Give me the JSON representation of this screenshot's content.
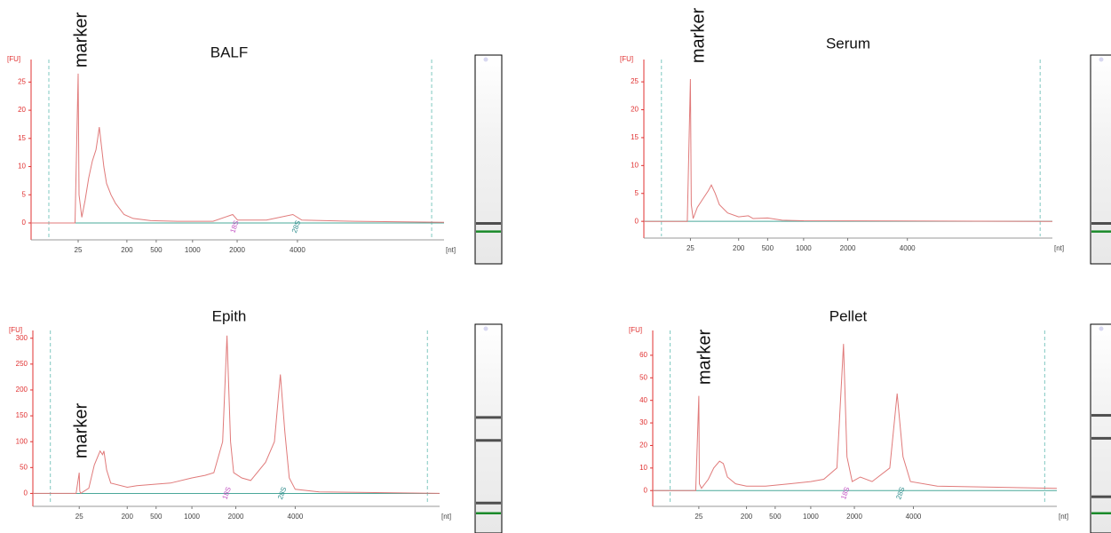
{
  "chart_data": [
    {
      "type": "line",
      "title": "BALF",
      "xlabel": "[nt]",
      "ylabel": "[FU]",
      "color": "#e07a7a",
      "x": [
        10,
        17,
        24,
        25,
        28,
        38,
        50,
        63,
        76,
        89,
        95,
        101,
        108,
        117,
        127,
        143,
        159,
        190,
        264,
        445,
        793,
        1460,
        1900,
        2015,
        2970,
        3850,
        4180,
        6360,
        10000
      ],
      "values": [
        0,
        0,
        0,
        26.5,
        5,
        1,
        4,
        8,
        11,
        13,
        15,
        17,
        14,
        10,
        7,
        5,
        3.5,
        1.5,
        0.8,
        0.4,
        0.3,
        0.3,
        1.5,
        0.5,
        0.5,
        1.5,
        0.5,
        0.3,
        0.1
      ],
      "xlim": [
        10,
        10000
      ],
      "xticks": [
        25,
        200,
        500,
        1000,
        2000,
        4000
      ],
      "ylim": [
        -3,
        29
      ],
      "yticks": [
        0,
        5,
        10,
        15,
        20,
        25
      ],
      "annotations": [
        {
          "text": "marker",
          "x": 25
        },
        {
          "text": "18S",
          "x": 1900
        },
        {
          "text": "28S",
          "x": 3900
        }
      ]
    },
    {
      "type": "line",
      "title": "Serum",
      "xlabel": "[nt]",
      "ylabel": "[FU]",
      "color": "#e07a7a",
      "x": [
        10,
        24,
        25,
        28,
        35,
        50,
        70,
        90,
        101,
        115,
        130,
        160,
        200,
        300,
        350,
        500,
        700,
        1000,
        10000
      ],
      "values": [
        0,
        0,
        25.5,
        3,
        0.5,
        2.5,
        4,
        5.5,
        6.5,
        5,
        3,
        1.5,
        0.8,
        1,
        0.5,
        0.6,
        0.2,
        0.1,
        0
      ],
      "xlim": [
        10,
        10000
      ],
      "xticks": [
        25,
        200,
        500,
        1000,
        2000,
        4000
      ],
      "ylim": [
        -3,
        29
      ],
      "yticks": [
        0,
        5,
        10,
        15,
        20,
        25
      ],
      "annotations": [
        {
          "text": "marker",
          "x": 25
        }
      ]
    },
    {
      "type": "line",
      "title": "Epith",
      "xlabel": "[nt]",
      "ylabel": "[FU]",
      "color": "#e07a7a",
      "x": [
        10,
        24,
        25,
        27,
        30,
        60,
        80,
        101,
        110,
        115,
        125,
        140,
        200,
        300,
        500,
        700,
        1000,
        1300,
        1500,
        1700,
        1800,
        1880,
        1950,
        2200,
        2500,
        3000,
        3300,
        3500,
        3650,
        3800,
        4000,
        5000,
        10000
      ],
      "values": [
        0,
        0,
        40,
        5,
        0,
        10,
        55,
        82,
        75,
        82,
        45,
        20,
        12,
        15,
        18,
        20,
        30,
        35,
        40,
        100,
        305,
        100,
        40,
        30,
        25,
        60,
        100,
        230,
        120,
        30,
        8,
        3,
        0
      ],
      "xlim": [
        10,
        10000
      ],
      "xticks": [
        25,
        200,
        500,
        1000,
        2000,
        4000
      ],
      "ylim": [
        -25,
        315
      ],
      "yticks": [
        0,
        50,
        100,
        150,
        200,
        250,
        300
      ],
      "annotations": [
        {
          "text": "marker",
          "x": 25
        },
        {
          "text": "18S",
          "x": 1750
        },
        {
          "text": "28S",
          "x": 3500
        }
      ]
    },
    {
      "type": "line",
      "title": "Pellet",
      "xlabel": "[nt]",
      "ylabel": "[FU]",
      "color": "#e07a7a",
      "x": [
        10,
        24,
        25,
        27,
        35,
        60,
        80,
        101,
        115,
        130,
        160,
        200,
        400,
        700,
        1000,
        1300,
        1600,
        1750,
        1830,
        1950,
        2200,
        2600,
        3200,
        3450,
        3650,
        3900,
        5000,
        10000
      ],
      "values": [
        0,
        0,
        42,
        3,
        1,
        5,
        10,
        13,
        12,
        6,
        3,
        2,
        2,
        3,
        4,
        5,
        10,
        65,
        15,
        4,
        6,
        4,
        10,
        43,
        15,
        4,
        2,
        1
      ],
      "xlim": [
        10,
        10000
      ],
      "xticks": [
        25,
        200,
        500,
        1000,
        2000,
        4000
      ],
      "ylim": [
        -7,
        71
      ],
      "yticks": [
        0,
        10,
        20,
        30,
        40,
        50,
        60
      ],
      "annotations": [
        {
          "text": "marker",
          "x": 25
        },
        {
          "text": "18S",
          "x": 1750
        },
        {
          "text": "28S",
          "x": 3500
        }
      ]
    }
  ]
}
